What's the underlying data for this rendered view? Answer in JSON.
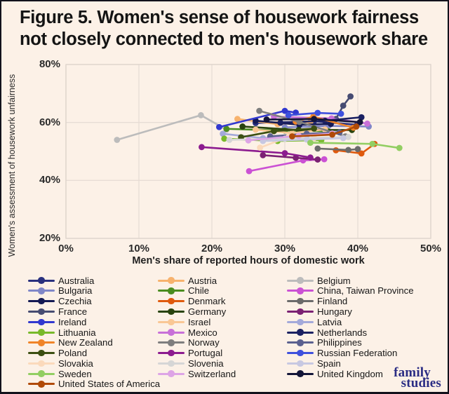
{
  "title": {
    "line1": "Figure 5. Women's sense of housework fairness",
    "line2": "not closely connected to men's housework share"
  },
  "chart_data": {
    "type": "line",
    "title": "Figure 5. Women's sense of housework fairness not closely connected to men's housework share",
    "xlabel": "Men's share of reported hours of domestic work",
    "ylabel": "Women's assessment of housework unfairness",
    "xlim": [
      0,
      50
    ],
    "ylim": [
      20,
      80
    ],
    "x_ticks": [
      0,
      10,
      20,
      30,
      40,
      50
    ],
    "y_ticks": [
      20,
      40,
      60,
      80
    ],
    "x_tick_suffix": "%",
    "grid": true,
    "legend_position": "bottom",
    "series": [
      {
        "name": "Australia",
        "color": "#29307e",
        "points": [
          [
            26.0,
            59.8
          ],
          [
            34.0,
            60.4
          ],
          [
            39.9,
            59.2
          ]
        ]
      },
      {
        "name": "Austria",
        "color": "#f7b26d",
        "points": [
          [
            23.5,
            61.2
          ],
          [
            29.0,
            59.4
          ],
          [
            33.5,
            60.2
          ]
        ]
      },
      {
        "name": "Belgium",
        "color": "#bcbcbc",
        "points": [
          [
            7.0,
            54.0
          ],
          [
            18.5,
            62.5
          ],
          [
            22.0,
            57.5
          ]
        ]
      },
      {
        "name": "Bulgaria",
        "color": "#8087c8",
        "points": [
          [
            30.0,
            58.3
          ],
          [
            36.0,
            58.8
          ],
          [
            41.5,
            58.6
          ]
        ]
      },
      {
        "name": "Chile",
        "color": "#4a8c1f",
        "points": [
          [
            22.0,
            57.8
          ],
          [
            30.0,
            57.2
          ],
          [
            35.9,
            57.0
          ]
        ]
      },
      {
        "name": "China, Taiwan Province",
        "color": "#cb51d4",
        "points": [
          [
            25.1,
            43.2
          ],
          [
            32.5,
            46.9
          ],
          [
            35.4,
            47.3
          ]
        ]
      },
      {
        "name": "Czechia",
        "color": "#141a54",
        "points": [
          [
            26.0,
            60.6
          ],
          [
            32.0,
            59.2
          ],
          [
            36.3,
            59.5
          ]
        ]
      },
      {
        "name": "Denmark",
        "color": "#df5a0e",
        "points": [
          [
            37.0,
            50.4
          ],
          [
            40.5,
            49.3
          ],
          [
            42.3,
            52.6
          ]
        ]
      },
      {
        "name": "Finland",
        "color": "#6b6b6b",
        "points": [
          [
            34.5,
            51.0
          ],
          [
            38.7,
            50.5
          ],
          [
            40.0,
            50.8
          ]
        ]
      },
      {
        "name": "France",
        "color": "#474c72",
        "points": [
          [
            37.0,
            61.2
          ],
          [
            38.0,
            65.8
          ],
          [
            39.0,
            69.0
          ]
        ]
      },
      {
        "name": "Germany",
        "color": "#28430e",
        "points": [
          [
            24.2,
            58.6
          ],
          [
            31.9,
            57.4
          ],
          [
            39.2,
            57.4
          ]
        ]
      },
      {
        "name": "Hungary",
        "color": "#7b2173",
        "points": [
          [
            27.0,
            48.7
          ],
          [
            31.5,
            47.8
          ],
          [
            34.5,
            47.2
          ]
        ]
      },
      {
        "name": "Ireland",
        "color": "#3138cf",
        "points": [
          [
            21.0,
            58.4
          ],
          [
            30.0,
            64.0
          ],
          [
            31.5,
            63.4
          ]
        ]
      },
      {
        "name": "Israel",
        "color": "#f9c795",
        "points": [
          [
            26.0,
            57.5
          ],
          [
            31.0,
            56.3
          ],
          [
            35.5,
            57.6
          ]
        ]
      },
      {
        "name": "Latvia",
        "color": "#a3a9da",
        "points": [
          [
            21.5,
            56.1
          ],
          [
            27.0,
            54.6
          ],
          [
            33.0,
            55.6
          ]
        ]
      },
      {
        "name": "Lithuania",
        "color": "#78b92a",
        "points": [
          [
            21.7,
            54.4
          ],
          [
            29.0,
            53.6
          ],
          [
            35.0,
            53.9
          ]
        ]
      },
      {
        "name": "Mexico",
        "color": "#c870d8",
        "points": [
          [
            28.5,
            62.0
          ],
          [
            36.4,
            61.4
          ],
          [
            41.3,
            59.6
          ]
        ]
      },
      {
        "name": "Netherlands",
        "color": "#1b2162",
        "points": [
          [
            29.4,
            59.9
          ],
          [
            35.5,
            60.6
          ],
          [
            40.5,
            61.8
          ]
        ]
      },
      {
        "name": "New Zealand",
        "color": "#f08428",
        "points": [
          [
            31.5,
            60.3
          ],
          [
            33.9,
            62.0
          ],
          [
            39.4,
            58.2
          ]
        ]
      },
      {
        "name": "Norway",
        "color": "#7e7e7e",
        "points": [
          [
            26.5,
            64.0
          ],
          [
            32.0,
            60.2
          ],
          [
            38.3,
            55.2
          ]
        ]
      },
      {
        "name": "Philippines",
        "color": "#5a608f",
        "points": [
          [
            28.0,
            55.2
          ],
          [
            33.0,
            56.1
          ],
          [
            37.5,
            56.6
          ]
        ]
      },
      {
        "name": "Poland",
        "color": "#3c4f12",
        "points": [
          [
            24.0,
            54.9
          ],
          [
            28.5,
            57.0
          ],
          [
            34.0,
            57.9
          ]
        ]
      },
      {
        "name": "Portugal",
        "color": "#8c1b8f",
        "points": [
          [
            18.6,
            51.5
          ],
          [
            30.0,
            49.4
          ],
          [
            33.5,
            47.9
          ]
        ]
      },
      {
        "name": "Russian Federation",
        "color": "#3f51dd",
        "points": [
          [
            30.5,
            62.5
          ],
          [
            34.5,
            63.3
          ],
          [
            37.7,
            63.0
          ]
        ]
      },
      {
        "name": "Slovakia",
        "color": "#fbd9bb",
        "points": [
          [
            26.6,
            51.3
          ],
          [
            30.5,
            55.0
          ],
          [
            34.0,
            54.6
          ]
        ]
      },
      {
        "name": "Slovenia",
        "color": "#d6d6d6",
        "points": [
          [
            22.4,
            54.0
          ],
          [
            30.0,
            54.4
          ],
          [
            38.7,
            55.0
          ]
        ]
      },
      {
        "name": "Spain",
        "color": "#c7c8e2",
        "points": [
          [
            27.0,
            53.6
          ],
          [
            33.0,
            54.1
          ],
          [
            38.0,
            54.6
          ]
        ]
      },
      {
        "name": "Sweden",
        "color": "#92ce62",
        "points": [
          [
            33.5,
            53.0
          ],
          [
            42.0,
            52.6
          ],
          [
            45.7,
            51.2
          ]
        ]
      },
      {
        "name": "Switzerland",
        "color": "#dda4e6",
        "points": [
          [
            25.0,
            53.8
          ],
          [
            31.9,
            55.4
          ],
          [
            36.5,
            56.2
          ]
        ]
      },
      {
        "name": "United Kingdom",
        "color": "#131538",
        "points": [
          [
            27.5,
            61.0
          ],
          [
            34.0,
            61.2
          ],
          [
            40.3,
            60.1
          ]
        ]
      },
      {
        "name": "United States of America",
        "color": "#b04a08",
        "points": [
          [
            31.0,
            55.2
          ],
          [
            36.5,
            55.8
          ],
          [
            39.8,
            58.6
          ]
        ]
      }
    ]
  },
  "style": {
    "background": "#fcf1e7",
    "gridline_color": "#e7ddd5",
    "plot_border_color": "#ddd3cb",
    "frame_border_color": "#12121c",
    "logo_color": "#2b2d84"
  },
  "footer": {
    "logo_line1": "family",
    "logo_line2": "studies"
  }
}
